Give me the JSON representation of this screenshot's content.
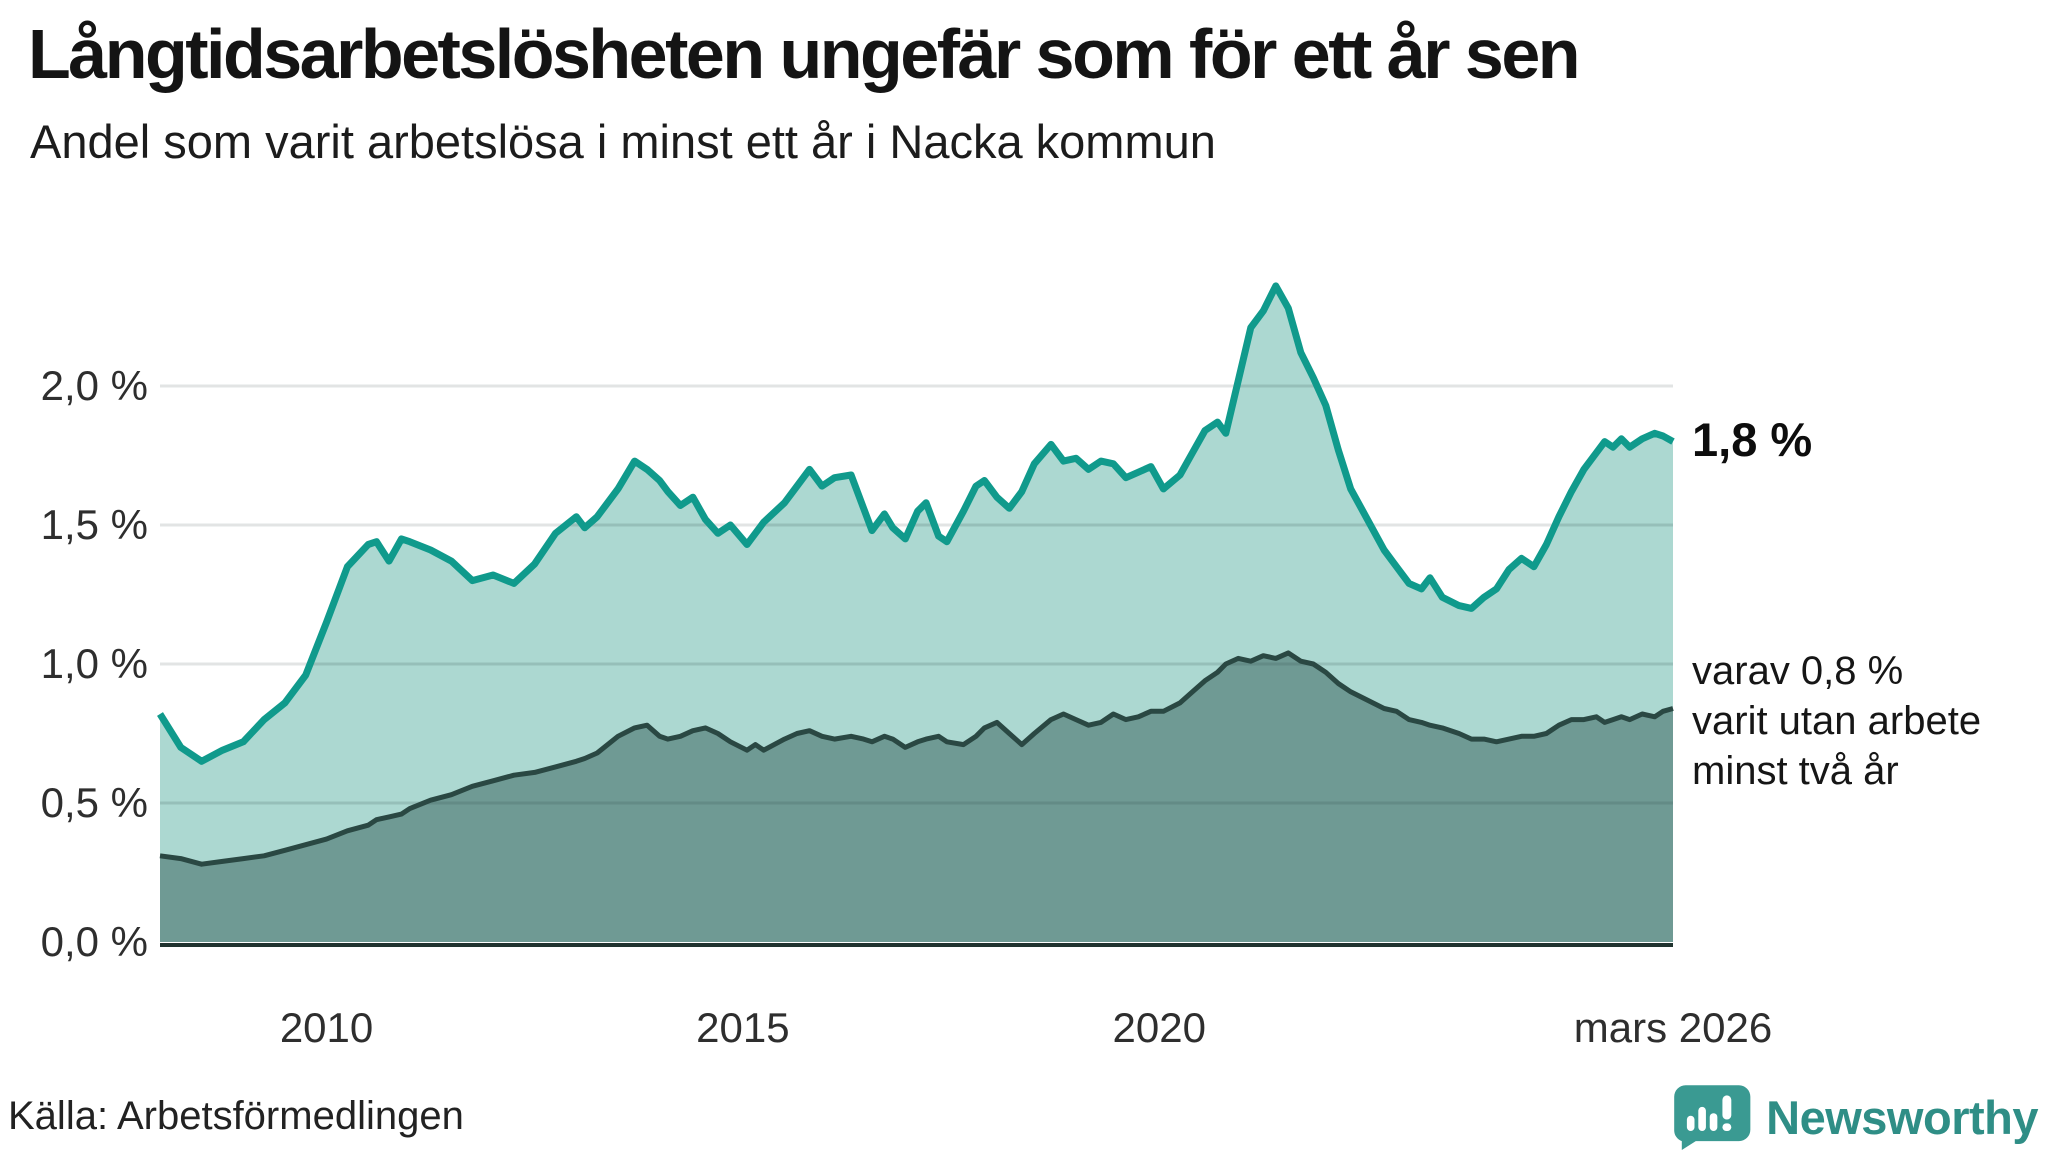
{
  "header": {
    "title": "Långtidsarbetslösheten ungefär som för ett år sen",
    "subtitle": "Andel som varit arbetslösa i minst ett år i Nacka kommun"
  },
  "footer": {
    "source": "Källa: Arbetsförmedlingen",
    "logo_text": "Newsworthy"
  },
  "annotations": {
    "end_total": "1,8 %",
    "end_two_years_lines": [
      "varav 0,8 %",
      "varit utan arbete",
      "minst två år"
    ]
  },
  "colors": {
    "total_line": "#109a8c",
    "total_fill": "#acd8d1",
    "two_years_line": "#2a4843",
    "two_years_fill": "#6f9a94",
    "gridline": "#e2e4e4",
    "gridline_overlay": "rgba(35,65,60,0.16)",
    "axis_baseline": "#20332f",
    "logo_teal": "#3a9a92",
    "logo_word": "#2f8e86"
  },
  "chart_data": {
    "type": "area",
    "title": "Långtidsarbetslösheten ungefär som för ett år sen",
    "subtitle": "Andel som varit arbetslösa i minst ett år i Nacka kommun",
    "x_unit": "decimal_year",
    "xlim": [
      2008.0,
      2026.17
    ],
    "ylim": [
      0,
      2.5
    ],
    "grid": true,
    "y_ticks": [
      {
        "value": 0.0,
        "label": "0,0 %"
      },
      {
        "value": 0.5,
        "label": "0,5 %"
      },
      {
        "value": 1.0,
        "label": "1,0 %"
      },
      {
        "value": 1.5,
        "label": "1,5 %"
      },
      {
        "value": 2.0,
        "label": "2,0 %"
      }
    ],
    "x_ticks": [
      {
        "value": 2010,
        "label": "2010"
      },
      {
        "value": 2015,
        "label": "2015"
      },
      {
        "value": 2020,
        "label": "2020"
      },
      {
        "value": 2026.17,
        "label": "mars 2026"
      }
    ],
    "x": [
      2008.0,
      2008.25,
      2008.5,
      2008.75,
      2009.0,
      2009.25,
      2009.5,
      2009.75,
      2010.0,
      2010.25,
      2010.5,
      2010.6,
      2010.75,
      2010.9,
      2011.0,
      2011.25,
      2011.5,
      2011.75,
      2012.0,
      2012.25,
      2012.5,
      2012.75,
      2013.0,
      2013.1,
      2013.25,
      2013.5,
      2013.7,
      2013.85,
      2014.0,
      2014.1,
      2014.25,
      2014.4,
      2014.55,
      2014.7,
      2014.85,
      2015.05,
      2015.15,
      2015.25,
      2015.5,
      2015.65,
      2015.8,
      2015.95,
      2016.1,
      2016.3,
      2016.45,
      2016.55,
      2016.7,
      2016.8,
      2016.95,
      2017.1,
      2017.2,
      2017.35,
      2017.45,
      2017.65,
      2017.8,
      2017.9,
      2018.05,
      2018.2,
      2018.35,
      2018.5,
      2018.7,
      2018.85,
      2019.0,
      2019.15,
      2019.3,
      2019.45,
      2019.6,
      2019.75,
      2019.9,
      2020.05,
      2020.25,
      2020.4,
      2020.55,
      2020.7,
      2020.8,
      2020.95,
      2021.1,
      2021.25,
      2021.4,
      2021.55,
      2021.7,
      2021.85,
      2022.0,
      2022.15,
      2022.3,
      2022.5,
      2022.7,
      2022.85,
      2023.0,
      2023.15,
      2023.25,
      2023.4,
      2023.6,
      2023.75,
      2023.9,
      2024.05,
      2024.2,
      2024.35,
      2024.5,
      2024.65,
      2024.8,
      2024.95,
      2025.1,
      2025.25,
      2025.35,
      2025.45,
      2025.55,
      2025.65,
      2025.8,
      2025.95,
      2026.05,
      2026.17
    ],
    "series": [
      {
        "name": "Andel som varit arbetslösa i minst ett år",
        "end_value_label": "1,8 %",
        "values": [
          0.82,
          0.7,
          0.65,
          0.69,
          0.72,
          0.8,
          0.86,
          0.96,
          1.15,
          1.35,
          1.43,
          1.44,
          1.37,
          1.45,
          1.44,
          1.41,
          1.37,
          1.3,
          1.32,
          1.29,
          1.36,
          1.47,
          1.53,
          1.49,
          1.53,
          1.63,
          1.73,
          1.7,
          1.66,
          1.62,
          1.57,
          1.6,
          1.52,
          1.47,
          1.5,
          1.43,
          1.47,
          1.51,
          1.58,
          1.64,
          1.7,
          1.64,
          1.67,
          1.68,
          1.56,
          1.48,
          1.54,
          1.49,
          1.45,
          1.55,
          1.58,
          1.46,
          1.44,
          1.55,
          1.64,
          1.66,
          1.6,
          1.56,
          1.62,
          1.72,
          1.79,
          1.73,
          1.74,
          1.7,
          1.73,
          1.72,
          1.67,
          1.69,
          1.71,
          1.63,
          1.68,
          1.76,
          1.84,
          1.87,
          1.83,
          2.02,
          2.21,
          2.27,
          2.36,
          2.28,
          2.12,
          2.03,
          1.93,
          1.77,
          1.63,
          1.52,
          1.41,
          1.35,
          1.29,
          1.27,
          1.31,
          1.24,
          1.21,
          1.2,
          1.24,
          1.27,
          1.34,
          1.38,
          1.35,
          1.43,
          1.53,
          1.62,
          1.7,
          1.76,
          1.8,
          1.78,
          1.81,
          1.78,
          1.81,
          1.83,
          1.82,
          1.8
        ]
      },
      {
        "name": "varav utan arbete minst två år",
        "end_value_label": "0,8 %",
        "values": [
          0.31,
          0.3,
          0.28,
          0.29,
          0.3,
          0.31,
          0.33,
          0.35,
          0.37,
          0.4,
          0.42,
          0.44,
          0.45,
          0.46,
          0.48,
          0.51,
          0.53,
          0.56,
          0.58,
          0.6,
          0.61,
          0.63,
          0.65,
          0.66,
          0.68,
          0.74,
          0.77,
          0.78,
          0.74,
          0.73,
          0.74,
          0.76,
          0.77,
          0.75,
          0.72,
          0.69,
          0.71,
          0.69,
          0.73,
          0.75,
          0.76,
          0.74,
          0.73,
          0.74,
          0.73,
          0.72,
          0.74,
          0.73,
          0.7,
          0.72,
          0.73,
          0.74,
          0.72,
          0.71,
          0.74,
          0.77,
          0.79,
          0.75,
          0.71,
          0.75,
          0.8,
          0.82,
          0.8,
          0.78,
          0.79,
          0.82,
          0.8,
          0.81,
          0.83,
          0.83,
          0.86,
          0.9,
          0.94,
          0.97,
          1.0,
          1.02,
          1.01,
          1.03,
          1.02,
          1.04,
          1.01,
          1.0,
          0.97,
          0.93,
          0.9,
          0.87,
          0.84,
          0.83,
          0.8,
          0.79,
          0.78,
          0.77,
          0.75,
          0.73,
          0.73,
          0.72,
          0.73,
          0.74,
          0.74,
          0.75,
          0.78,
          0.8,
          0.8,
          0.81,
          0.79,
          0.8,
          0.81,
          0.8,
          0.82,
          0.81,
          0.83,
          0.84
        ]
      }
    ]
  }
}
